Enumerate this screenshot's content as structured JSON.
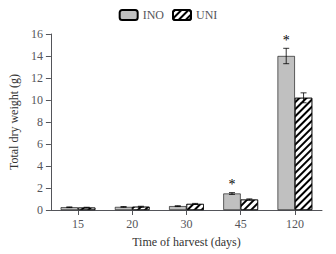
{
  "chart_data": {
    "type": "bar",
    "categories": [
      "15",
      "20",
      "30",
      "45",
      "120"
    ],
    "series": [
      {
        "name": "INO",
        "color": "#c0c0c0",
        "values": [
          0.25,
          0.28,
          0.35,
          1.5,
          14.0
        ],
        "errors": [
          0.03,
          0.03,
          0.04,
          0.08,
          0.7
        ]
      },
      {
        "name": "UNI",
        "color": "#ffffff",
        "values": [
          0.22,
          0.3,
          0.55,
          0.95,
          10.2
        ],
        "errors": [
          0.03,
          0.04,
          0.05,
          0.06,
          0.45
        ]
      }
    ],
    "xlabel": "Time of harvest (days)",
    "ylabel": "Total dry weight (g)",
    "ylim": [
      0,
      16
    ],
    "yticks": [
      0,
      2,
      4,
      6,
      8,
      10,
      12,
      14,
      16
    ],
    "grid": false,
    "legend": "upper center",
    "annotations": [
      {
        "text": "*",
        "category": "45",
        "series": "INO"
      },
      {
        "text": "*",
        "category": "120",
        "series": "INO"
      }
    ]
  }
}
